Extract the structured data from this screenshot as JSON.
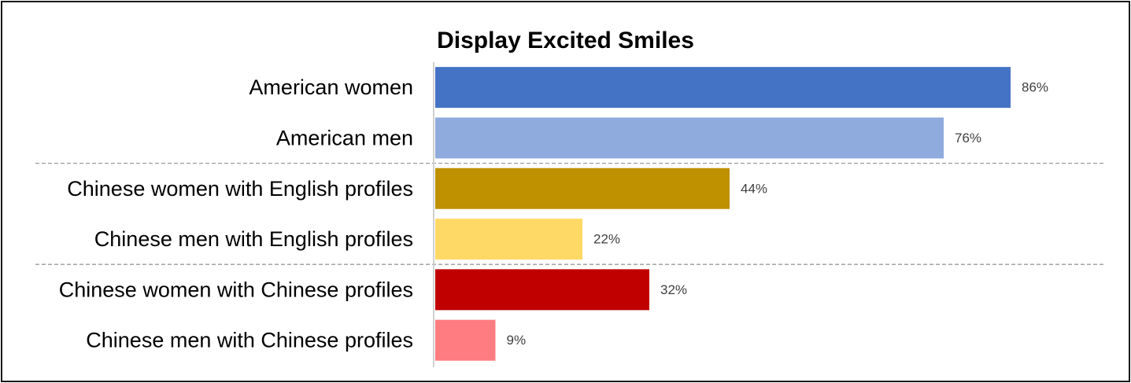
{
  "chart_data": {
    "type": "bar",
    "orientation": "horizontal",
    "title": "Display Excited Smiles",
    "categories": [
      "American women",
      "American men",
      "Chinese women with English profiles",
      "Chinese men with English profiles",
      "Chinese women with Chinese profiles",
      "Chinese men with Chinese profiles"
    ],
    "values": [
      86,
      76,
      44,
      22,
      32,
      9
    ],
    "value_labels": [
      "86%",
      "76%",
      "44%",
      "22%",
      "32%",
      "9%"
    ],
    "colors": [
      "#4472C4",
      "#8FAADC",
      "#BF9000",
      "#FFD966",
      "#C00000",
      "#FF7C80"
    ],
    "group_separators_after_index": [
      1,
      3
    ],
    "xlim": [
      0,
      100
    ],
    "xlabel": "",
    "ylabel": "",
    "grid": false,
    "legend": "none"
  }
}
